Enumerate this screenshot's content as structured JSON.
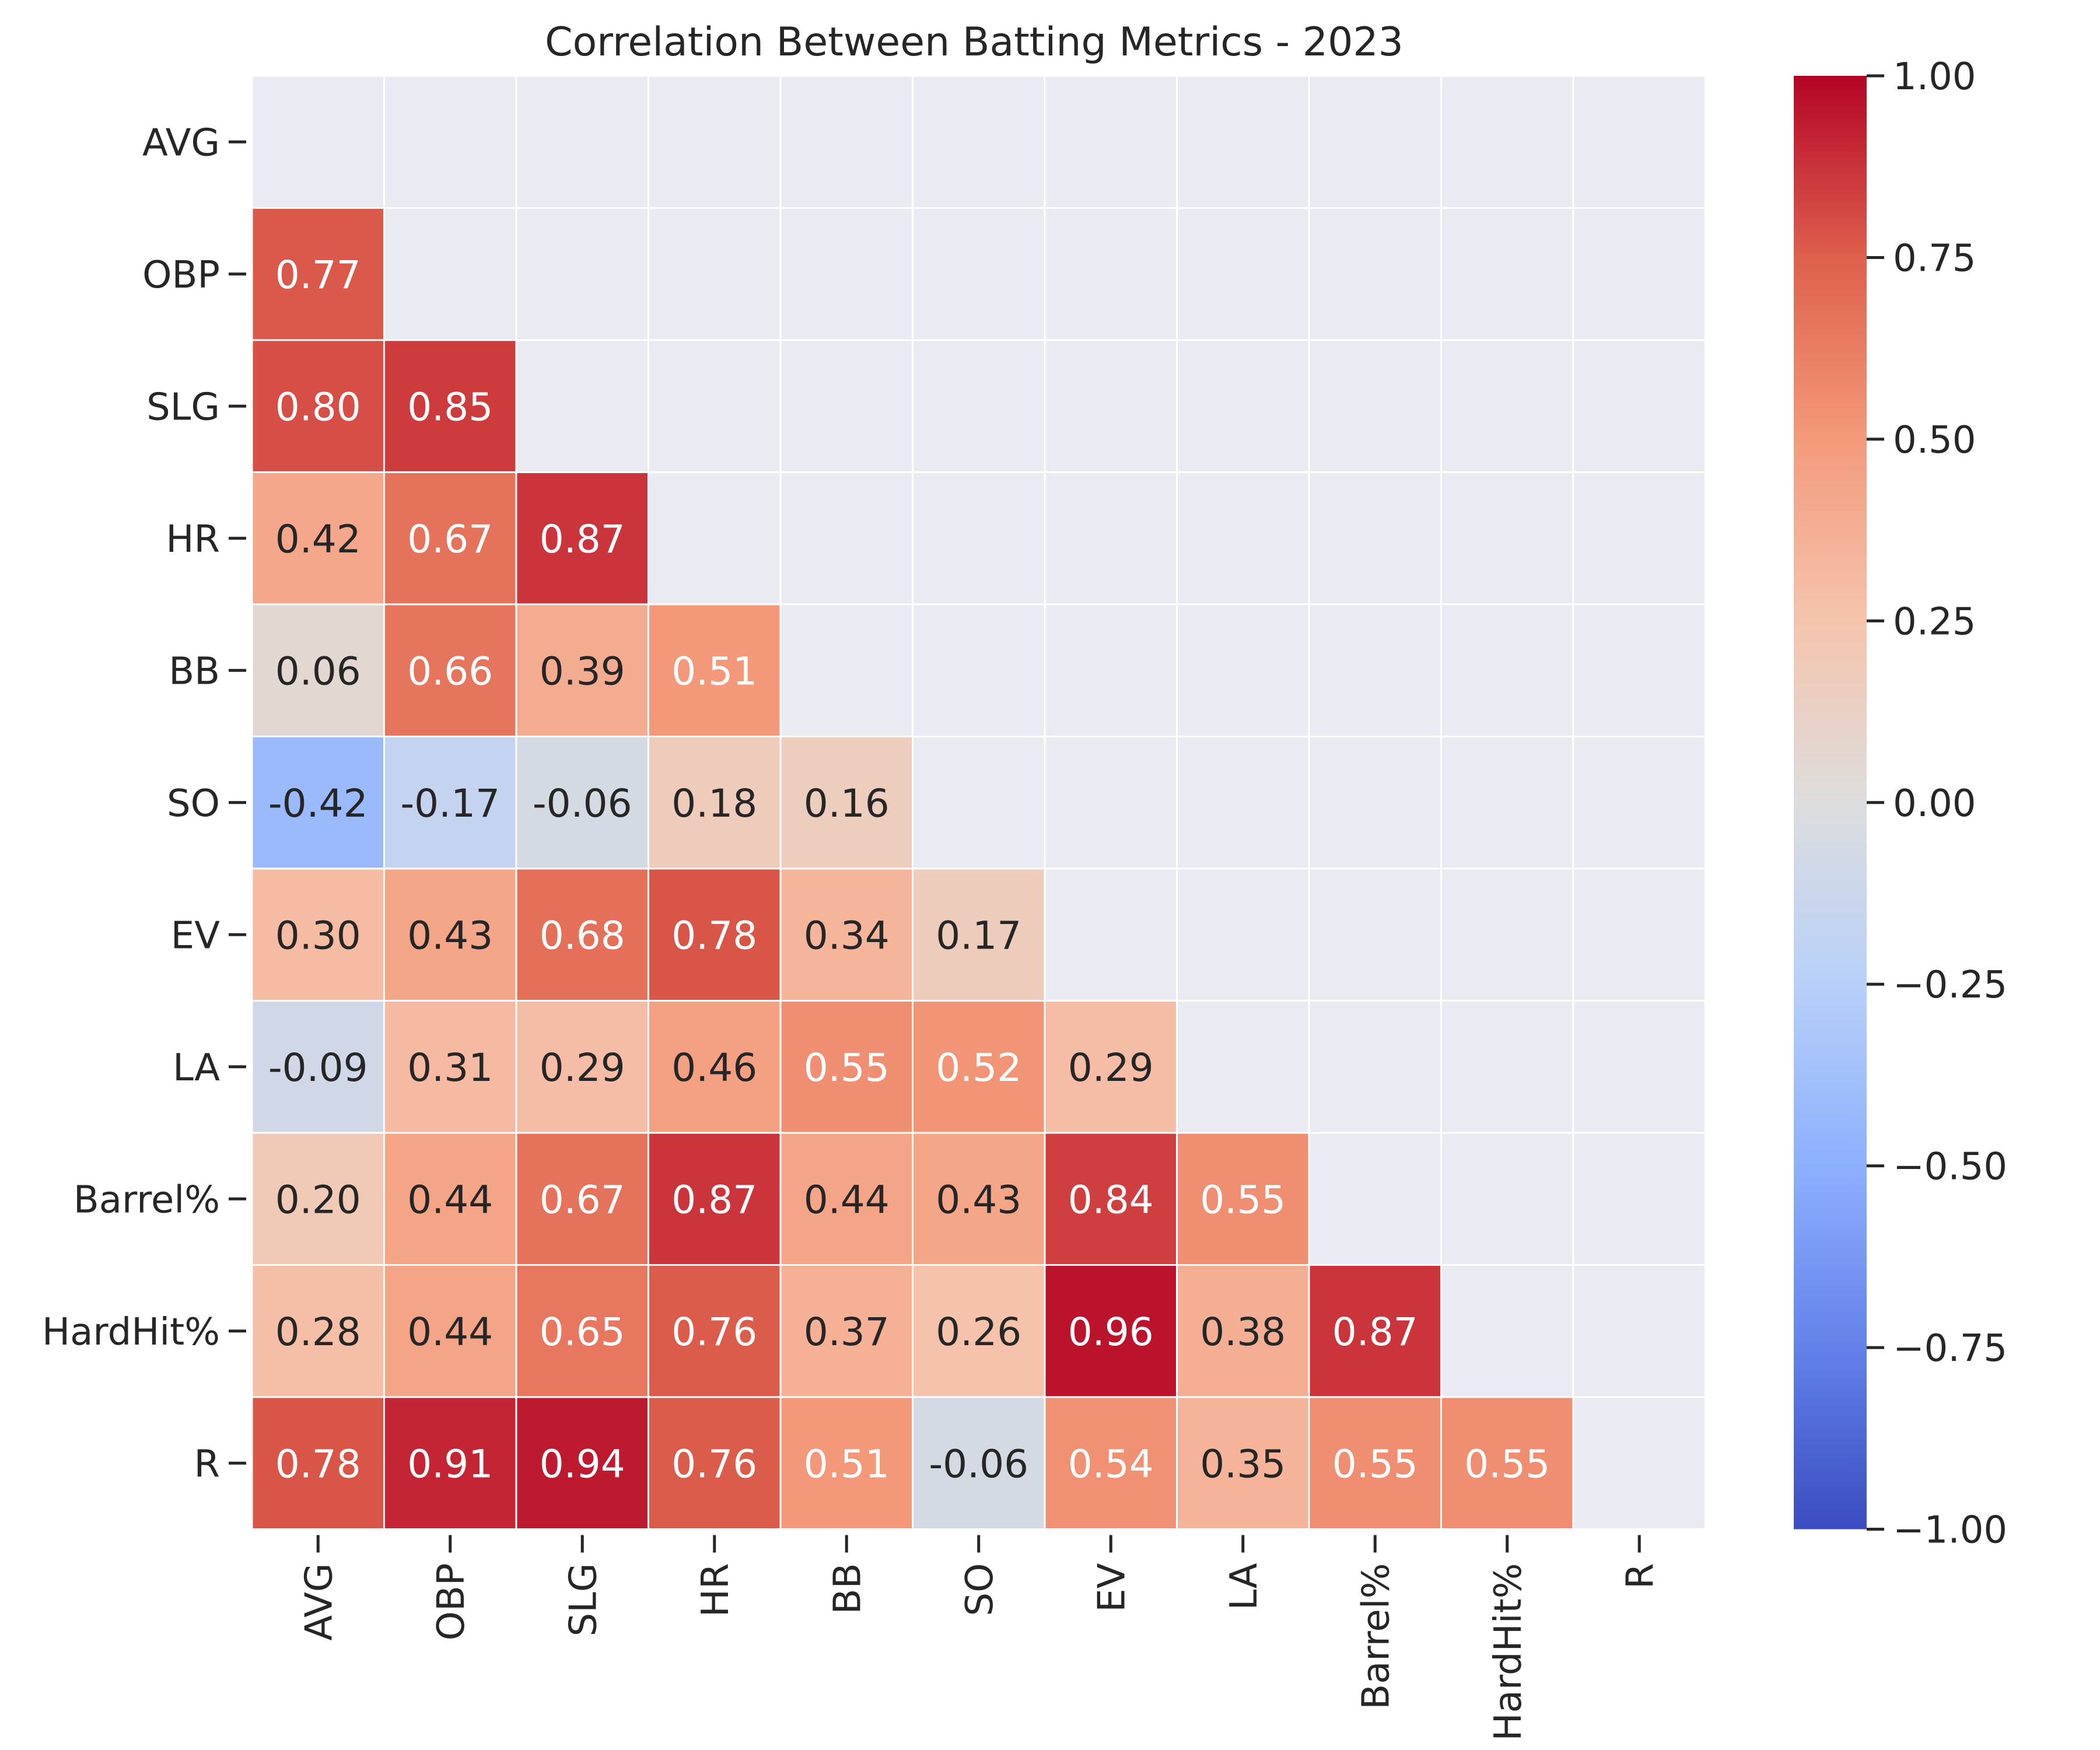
{
  "chart_data": {
    "type": "heatmap",
    "title": "Correlation Between Batting Metrics - 2023",
    "xlabel": "",
    "ylabel": "",
    "labels": [
      "AVG",
      "OBP",
      "SLG",
      "HR",
      "BB",
      "SO",
      "EV",
      "LA",
      "Barrel%",
      "HardHit%",
      "R"
    ],
    "mask": "upper triangle including diagonal",
    "matrix": [
      [
        null,
        null,
        null,
        null,
        null,
        null,
        null,
        null,
        null,
        null,
        null
      ],
      [
        0.77,
        null,
        null,
        null,
        null,
        null,
        null,
        null,
        null,
        null,
        null
      ],
      [
        0.8,
        0.85,
        null,
        null,
        null,
        null,
        null,
        null,
        null,
        null,
        null
      ],
      [
        0.42,
        0.67,
        0.87,
        null,
        null,
        null,
        null,
        null,
        null,
        null,
        null
      ],
      [
        0.06,
        0.66,
        0.39,
        0.51,
        null,
        null,
        null,
        null,
        null,
        null,
        null
      ],
      [
        -0.42,
        -0.17,
        -0.06,
        0.18,
        0.16,
        null,
        null,
        null,
        null,
        null,
        null
      ],
      [
        0.3,
        0.43,
        0.68,
        0.78,
        0.34,
        0.17,
        null,
        null,
        null,
        null,
        null
      ],
      [
        -0.09,
        0.31,
        0.29,
        0.46,
        0.55,
        0.52,
        0.29,
        null,
        null,
        null,
        null
      ],
      [
        0.2,
        0.44,
        0.67,
        0.87,
        0.44,
        0.43,
        0.84,
        0.55,
        null,
        null,
        null
      ],
      [
        0.28,
        0.44,
        0.65,
        0.76,
        0.37,
        0.26,
        0.96,
        0.38,
        0.87,
        null,
        null
      ],
      [
        0.78,
        0.91,
        0.94,
        0.76,
        0.51,
        -0.06,
        0.54,
        0.35,
        0.55,
        0.55,
        null
      ]
    ],
    "value_format": "2 decimals",
    "colormap": "coolwarm",
    "vmin": -1.0,
    "vmax": 1.0,
    "colorbar_ticks": [
      "1.00",
      "0.75",
      "0.50",
      "0.25",
      "0.00",
      "−0.25",
      "−0.50",
      "−0.75",
      "−1.00"
    ],
    "colorbar_tick_values": [
      1.0,
      0.75,
      0.5,
      0.25,
      0.0,
      -0.25,
      -0.5,
      -0.75,
      -1.0
    ],
    "colors": {
      "masked_cell": "#eaeaf2",
      "cell_border": "#ffffff",
      "text_dark": "#262626",
      "text_light": "#ffffff"
    }
  }
}
